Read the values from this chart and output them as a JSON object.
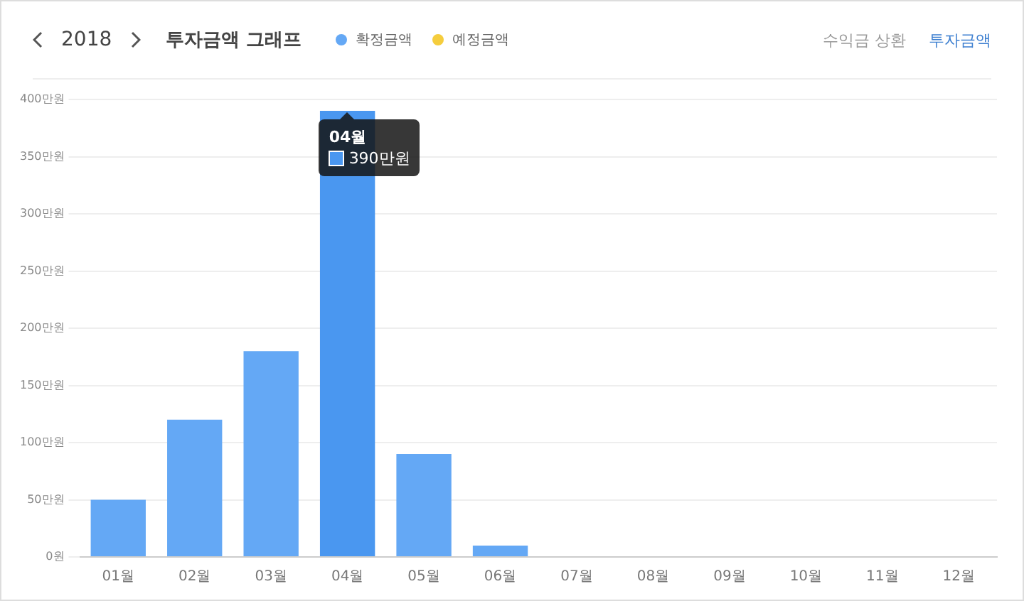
{
  "chart_data": {
    "type": "bar",
    "title": "투자금액 그래프",
    "subtitle": "2018",
    "categories": [
      "01월",
      "02월",
      "03월",
      "04월",
      "05월",
      "06월",
      "07월",
      "08월",
      "09월",
      "10월",
      "11월",
      "12월"
    ],
    "series": [
      {
        "name": "확정금액",
        "color": "#64a8f5",
        "colors": [
          "#64a8f5",
          "#64a8f5",
          "#64a8f5",
          "#4a97f0",
          "#64a8f5",
          "#64a8f5",
          "#64a8f5",
          "#64a8f5",
          "#64a8f5",
          "#64a8f5",
          "#64a8f5",
          "#64a8f5"
        ],
        "values": [
          50,
          120,
          180,
          390,
          90,
          10,
          0,
          0,
          0,
          0,
          0,
          0
        ]
      },
      {
        "name": "예정금액",
        "color": "#f5cd3d",
        "values": [
          0,
          0,
          0,
          0,
          0,
          0,
          0,
          0,
          0,
          0,
          0,
          0
        ]
      }
    ],
    "ylim": [
      0,
      400
    ],
    "yticks": [
      {
        "value": 0,
        "label": "0원"
      },
      {
        "value": 50,
        "label": "50만원"
      },
      {
        "value": 100,
        "label": "100만원"
      },
      {
        "value": 150,
        "label": "150만원"
      },
      {
        "value": 200,
        "label": "200만원"
      },
      {
        "value": 250,
        "label": "250만원"
      },
      {
        "value": 300,
        "label": "300만원"
      },
      {
        "value": 350,
        "label": "350만원"
      },
      {
        "value": 400,
        "label": "400만원"
      }
    ],
    "grid": "y",
    "legend": "top left",
    "annotations": [
      {
        "text": "04월\n390만원",
        "x": "04월",
        "y": 390
      },
      "수익금 상환",
      "투자금액"
    ]
  }
}
